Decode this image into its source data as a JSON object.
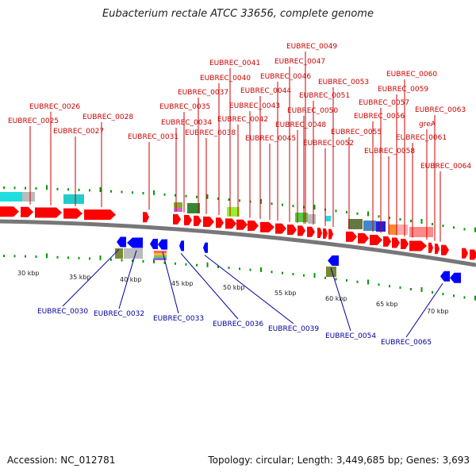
{
  "title": "Eubacterium rectale ATCC 33656, complete genome",
  "footer": {
    "accession": "Accession: NC_012781",
    "topology": "Topology: circular; Length: 3,449,685 bp; Genes: 3,693"
  },
  "colors": {
    "forward_gene": "#ff0000",
    "reverse_gene": "#0000ff",
    "forward_label": "#cc0000",
    "reverse_label": "#000099",
    "backbone": "#808080",
    "ruler": "#009900"
  },
  "scale": {
    "unit": "kbp",
    "ticks": [
      {
        "label": "30 kbp"
      },
      {
        "label": "35 kbp"
      },
      {
        "label": "40 kbp"
      },
      {
        "label": "45 kbp"
      },
      {
        "label": "50 kbp"
      },
      {
        "label": "55 kbp"
      },
      {
        "label": "60 kbp"
      },
      {
        "label": "65 kbp"
      },
      {
        "label": "70 kbp"
      }
    ]
  },
  "forward_labels": [
    "EUBREC_0025",
    "EUBREC_0026",
    "EUBREC_0027",
    "EUBREC_0028",
    "EUBREC_0031",
    "EUBREC_0034",
    "EUBREC_0035",
    "EUBREC_0037",
    "EUBREC_0038",
    "EUBREC_0040",
    "EUBREC_0041",
    "EUBREC_0042",
    "EUBREC_0043",
    "EUBREC_0044",
    "EUBREC_0045",
    "EUBREC_0046",
    "EUBREC_0047",
    "EUBREC_0048",
    "EUBREC_0049",
    "EUBREC_0050",
    "EUBREC_0051",
    "EUBREC_0052",
    "EUBREC_0053",
    "EUBREC_0055",
    "EUBREC_0056",
    "EUBREC_0057",
    "EUBREC_0058",
    "EUBREC_0059",
    "EUBREC_0060",
    "greA",
    "EUBREC_0061",
    "EUBREC_0063",
    "EUBREC_0064"
  ],
  "reverse_labels": [
    "EUBREC_0030",
    "EUBREC_0032",
    "EUBREC_0033",
    "EUBREC_0036",
    "EUBREC_0039",
    "EUBREC_0054",
    "EUBREC_0065"
  ]
}
